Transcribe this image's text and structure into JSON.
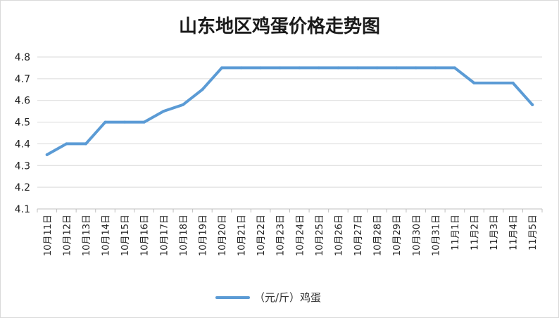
{
  "chart_data": {
    "type": "line",
    "title": "山东地区鸡蛋价格走势图",
    "xlabel": "",
    "ylabel": "",
    "ylim": [
      4.1,
      4.8
    ],
    "yticks": [
      "4.1",
      "4.2",
      "4.3",
      "4.4",
      "4.5",
      "4.6",
      "4.7",
      "4.8"
    ],
    "grid": true,
    "legend_position": "bottom",
    "color": "#5b9bd5",
    "x": [
      "10月11日",
      "10月12日",
      "10月13日",
      "10月14日",
      "10月15日",
      "10月16日",
      "10月17日",
      "10月18日",
      "10月19日",
      "10月20日",
      "10月21日",
      "10月22日",
      "10月23日",
      "10月24日",
      "10月25日",
      "10月26日",
      "10月27日",
      "10月28日",
      "10月29日",
      "10月30日",
      "10月31日",
      "11月1日",
      "11月2日",
      "11月3日",
      "11月4日",
      "11月5日"
    ],
    "series": [
      {
        "name": "（元/斤）鸡蛋",
        "values": [
          4.35,
          4.4,
          4.4,
          4.5,
          4.5,
          4.5,
          4.55,
          4.58,
          4.65,
          4.75,
          4.75,
          4.75,
          4.75,
          4.75,
          4.75,
          4.75,
          4.75,
          4.75,
          4.75,
          4.75,
          4.75,
          4.75,
          4.68,
          4.68,
          4.68,
          4.58
        ]
      }
    ]
  }
}
